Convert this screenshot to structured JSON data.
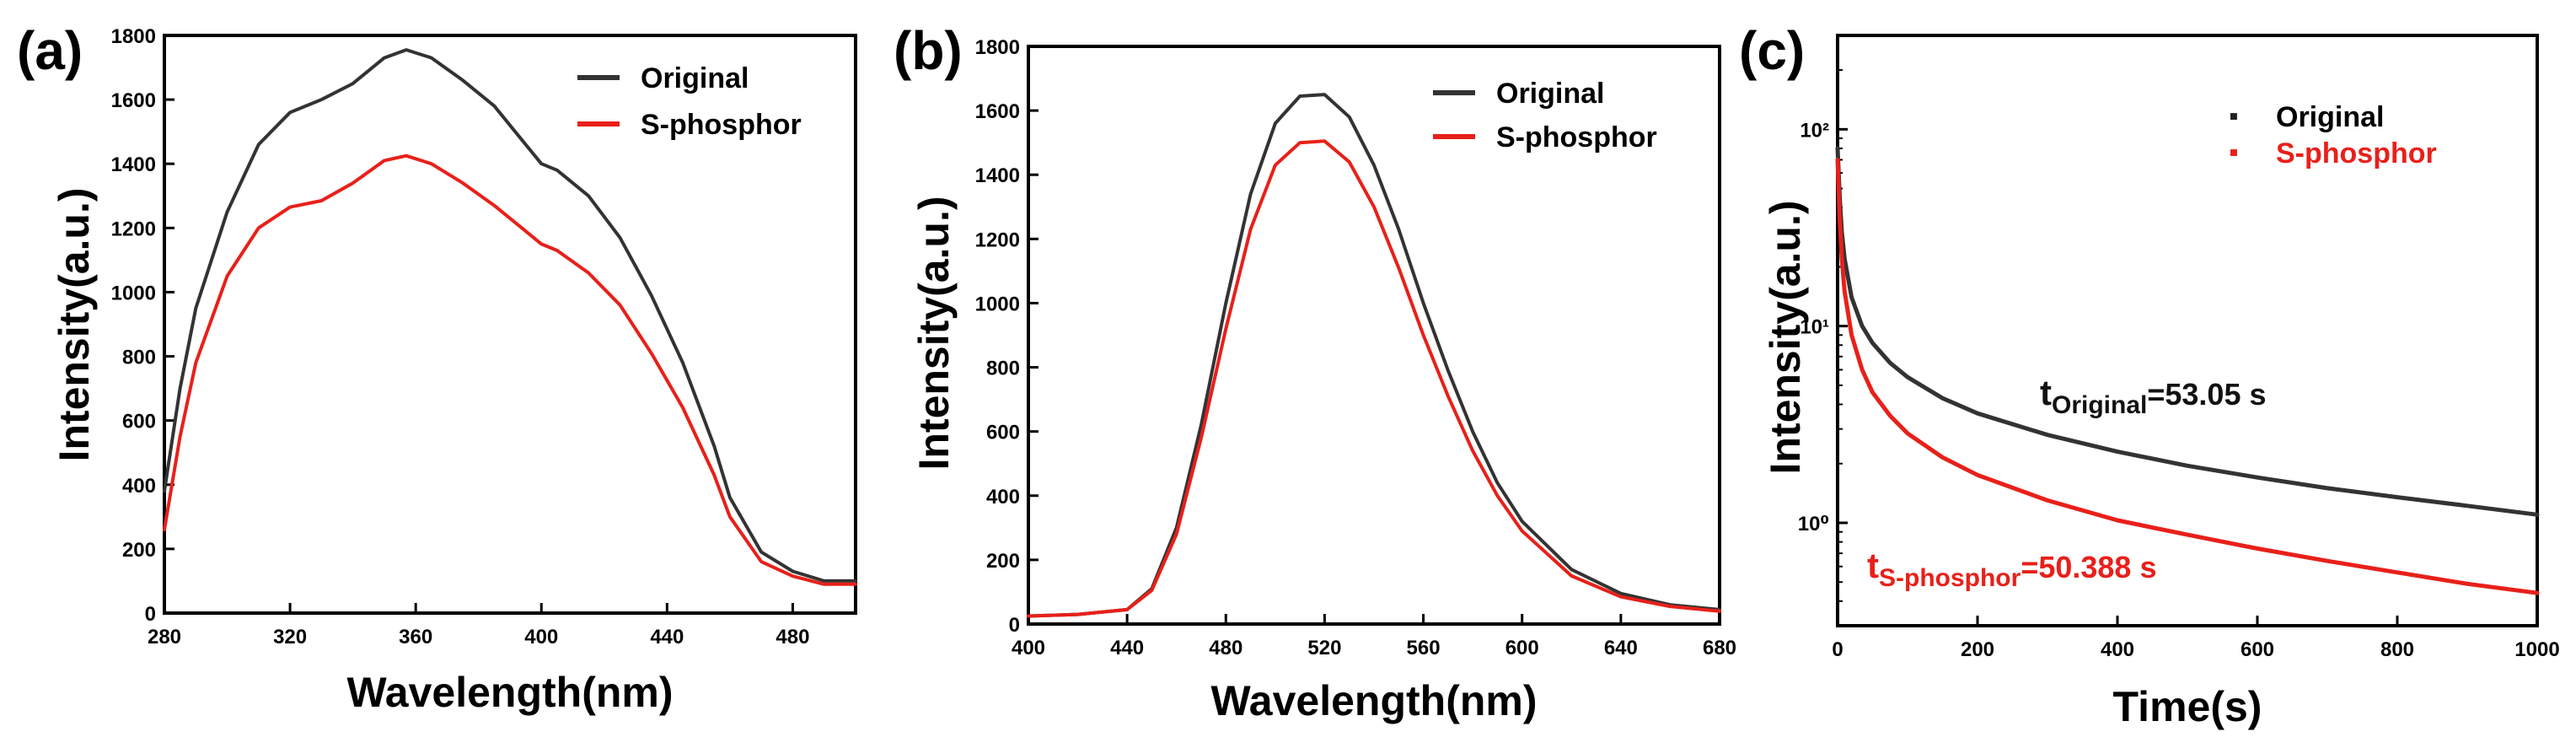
{
  "chart_data": [
    {
      "panel_label": "(a)",
      "type": "line",
      "xlabel": "Wavelength(nm)",
      "ylabel": "Intensity(a.u.)",
      "xlim": [
        280,
        500
      ],
      "ylim": [
        0,
        1800
      ],
      "xticks": [
        280,
        320,
        360,
        400,
        440,
        480
      ],
      "yticks": [
        0,
        200,
        400,
        600,
        800,
        1000,
        1200,
        1400,
        1600,
        1800
      ],
      "legend": "top-right",
      "series": [
        {
          "name": "Original",
          "color": "#333333",
          "x": [
            280,
            285,
            290,
            300,
            310,
            320,
            330,
            340,
            350,
            357,
            365,
            375,
            385,
            395,
            400,
            405,
            415,
            425,
            435,
            445,
            455,
            460,
            470,
            480,
            490,
            500
          ],
          "y": [
            380,
            700,
            950,
            1250,
            1460,
            1560,
            1600,
            1650,
            1730,
            1755,
            1730,
            1660,
            1580,
            1460,
            1400,
            1380,
            1300,
            1170,
            990,
            780,
            520,
            360,
            190,
            130,
            100,
            100
          ]
        },
        {
          "name": "S-phosphor",
          "color": "#e8201a",
          "x": [
            280,
            285,
            290,
            300,
            310,
            320,
            330,
            340,
            350,
            357,
            365,
            375,
            385,
            395,
            400,
            405,
            415,
            425,
            435,
            445,
            455,
            460,
            470,
            480,
            490,
            500
          ],
          "y": [
            260,
            550,
            780,
            1050,
            1200,
            1265,
            1285,
            1340,
            1410,
            1425,
            1400,
            1340,
            1270,
            1190,
            1150,
            1130,
            1060,
            960,
            810,
            640,
            430,
            300,
            160,
            115,
            90,
            90
          ]
        }
      ]
    },
    {
      "panel_label": "(b)",
      "type": "line",
      "xlabel": "Wavelength(nm)",
      "ylabel": "Intensity(a.u.)",
      "xlim": [
        400,
        680
      ],
      "ylim": [
        0,
        1800
      ],
      "xticks": [
        400,
        440,
        480,
        520,
        560,
        600,
        640,
        680
      ],
      "yticks": [
        0,
        200,
        400,
        600,
        800,
        1000,
        1200,
        1400,
        1600,
        1800
      ],
      "legend": "top-right",
      "series": [
        {
          "name": "Original",
          "color": "#333333",
          "x": [
            400,
            420,
            440,
            450,
            460,
            470,
            480,
            490,
            500,
            510,
            520,
            530,
            540,
            550,
            560,
            570,
            580,
            590,
            600,
            620,
            640,
            660,
            680
          ],
          "y": [
            25,
            30,
            45,
            110,
            300,
            620,
            1000,
            1340,
            1560,
            1645,
            1650,
            1580,
            1430,
            1230,
            1000,
            790,
            600,
            440,
            320,
            170,
            95,
            60,
            45
          ]
        },
        {
          "name": "S-phosphor",
          "color": "#e8201a",
          "x": [
            400,
            420,
            440,
            450,
            460,
            470,
            480,
            490,
            500,
            510,
            520,
            530,
            540,
            550,
            560,
            570,
            580,
            590,
            600,
            620,
            640,
            660,
            680
          ],
          "y": [
            25,
            30,
            45,
            105,
            280,
            580,
            920,
            1230,
            1430,
            1500,
            1505,
            1440,
            1300,
            1110,
            900,
            710,
            540,
            400,
            290,
            150,
            85,
            55,
            40
          ]
        }
      ]
    },
    {
      "panel_label": "(c)",
      "type": "line",
      "xlabel": "Time(s)",
      "ylabel": "Intensity(a.u.)",
      "xlim": [
        0,
        1000
      ],
      "ylim": [
        0.3,
        300
      ],
      "yscale": "log",
      "xticks": [
        0,
        200,
        400,
        600,
        800,
        1000
      ],
      "yticks": [
        1,
        10,
        100
      ],
      "ytick_labels": [
        "10⁰",
        "10¹",
        "10²"
      ],
      "legend": "top-right",
      "annotations": [
        {
          "main": "t",
          "sub": "Original",
          "suffix": "=53.05 s",
          "color": "#111111",
          "x": 335,
          "y": 3.4
        },
        {
          "main": "t",
          "sub": "S-phosphor",
          "suffix": "=50.388 s",
          "color": "#e8201a",
          "x": 45,
          "y": 0.55
        }
      ],
      "series": [
        {
          "name": "Original",
          "color": "#333333",
          "x": [
            0,
            3,
            6,
            10,
            20,
            35,
            50,
            75,
            100,
            150,
            200,
            300,
            400,
            500,
            600,
            700,
            800,
            900,
            1000
          ],
          "y": [
            80,
            45,
            30,
            22,
            14,
            10,
            8.2,
            6.5,
            5.5,
            4.3,
            3.6,
            2.8,
            2.3,
            1.95,
            1.7,
            1.5,
            1.35,
            1.22,
            1.1
          ]
        },
        {
          "name": "S-phosphor",
          "color": "#e8201a",
          "x": [
            0,
            3,
            6,
            10,
            20,
            35,
            50,
            75,
            100,
            150,
            200,
            300,
            400,
            500,
            600,
            700,
            800,
            900,
            1000
          ],
          "y": [
            70,
            35,
            22,
            15,
            9,
            6,
            4.6,
            3.5,
            2.85,
            2.15,
            1.75,
            1.3,
            1.03,
            0.87,
            0.74,
            0.64,
            0.56,
            0.49,
            0.44
          ]
        }
      ]
    }
  ]
}
